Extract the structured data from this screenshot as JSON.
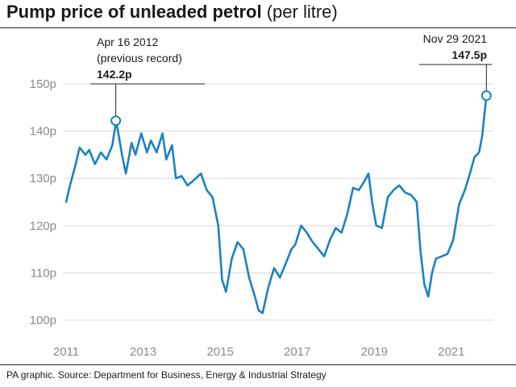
{
  "title_bold": "Pump price of unleaded petrol",
  "title_light": "(per litre)",
  "source": "PA graphic. Source: Department for Business, Energy & Industrial Strategy",
  "colors": {
    "line": "#1a82c3",
    "grid": "#d9d9d9",
    "axis_text": "#8a8a8a"
  },
  "chart_data": {
    "type": "line",
    "title": "Pump price of unleaded petrol (per litre)",
    "xlabel": "",
    "ylabel": "",
    "xlim": [
      2011.0,
      2022.05
    ],
    "ylim": [
      100,
      150
    ],
    "grid": "horizontal",
    "x_ticks": [
      2011,
      2013,
      2015,
      2017,
      2019,
      2021
    ],
    "x_tick_labels": [
      "2011",
      "2013",
      "2015",
      "2017",
      "2019",
      "2021"
    ],
    "y_ticks": [
      100,
      110,
      120,
      130,
      140,
      150
    ],
    "y_tick_labels": [
      "100p",
      "110p",
      "120p",
      "130p",
      "140p",
      "150p"
    ],
    "series": [
      {
        "values": [
          [
            2011.0,
            125.0
          ],
          [
            2011.1,
            128.5
          ],
          [
            2011.25,
            133.0
          ],
          [
            2011.35,
            136.5
          ],
          [
            2011.5,
            135.0
          ],
          [
            2011.6,
            136.0
          ],
          [
            2011.75,
            133.0
          ],
          [
            2011.9,
            135.5
          ],
          [
            2012.05,
            134.0
          ],
          [
            2012.2,
            137.0
          ],
          [
            2012.3,
            142.2
          ],
          [
            2012.45,
            135.0
          ],
          [
            2012.55,
            131.0
          ],
          [
            2012.7,
            137.5
          ],
          [
            2012.8,
            135.0
          ],
          [
            2012.95,
            139.5
          ],
          [
            2013.1,
            135.5
          ],
          [
            2013.2,
            138.0
          ],
          [
            2013.35,
            135.5
          ],
          [
            2013.5,
            139.5
          ],
          [
            2013.6,
            134.0
          ],
          [
            2013.75,
            137.0
          ],
          [
            2013.85,
            130.0
          ],
          [
            2014.0,
            130.5
          ],
          [
            2014.15,
            128.5
          ],
          [
            2014.3,
            129.5
          ],
          [
            2014.5,
            131.0
          ],
          [
            2014.65,
            127.5
          ],
          [
            2014.8,
            126.0
          ],
          [
            2014.95,
            120.0
          ],
          [
            2015.05,
            108.5
          ],
          [
            2015.15,
            106.0
          ],
          [
            2015.3,
            113.0
          ],
          [
            2015.45,
            116.5
          ],
          [
            2015.6,
            115.0
          ],
          [
            2015.75,
            109.0
          ],
          [
            2015.9,
            105.0
          ],
          [
            2016.0,
            102.0
          ],
          [
            2016.1,
            101.5
          ],
          [
            2016.25,
            107.0
          ],
          [
            2016.4,
            111.0
          ],
          [
            2016.55,
            109.0
          ],
          [
            2016.7,
            112.0
          ],
          [
            2016.85,
            115.0
          ],
          [
            2016.95,
            116.0
          ],
          [
            2017.1,
            120.0
          ],
          [
            2017.25,
            118.5
          ],
          [
            2017.4,
            116.5
          ],
          [
            2017.55,
            115.0
          ],
          [
            2017.7,
            113.5
          ],
          [
            2017.85,
            117.0
          ],
          [
            2018.0,
            119.5
          ],
          [
            2018.15,
            118.5
          ],
          [
            2018.3,
            122.5
          ],
          [
            2018.45,
            128.0
          ],
          [
            2018.6,
            127.5
          ],
          [
            2018.75,
            129.5
          ],
          [
            2018.85,
            131.0
          ],
          [
            2018.95,
            124.5
          ],
          [
            2019.05,
            120.0
          ],
          [
            2019.2,
            119.5
          ],
          [
            2019.35,
            126.0
          ],
          [
            2019.5,
            127.5
          ],
          [
            2019.65,
            128.5
          ],
          [
            2019.8,
            127.0
          ],
          [
            2019.95,
            126.5
          ],
          [
            2020.1,
            125.0
          ],
          [
            2020.2,
            114.5
          ],
          [
            2020.3,
            107.5
          ],
          [
            2020.4,
            105.0
          ],
          [
            2020.5,
            110.0
          ],
          [
            2020.6,
            113.0
          ],
          [
            2020.75,
            113.5
          ],
          [
            2020.9,
            114.0
          ],
          [
            2021.05,
            117.0
          ],
          [
            2021.2,
            124.5
          ],
          [
            2021.35,
            127.5
          ],
          [
            2021.5,
            131.5
          ],
          [
            2021.6,
            134.5
          ],
          [
            2021.72,
            135.5
          ],
          [
            2021.8,
            139.0
          ],
          [
            2021.91,
            147.5
          ]
        ]
      }
    ],
    "annotations": [
      {
        "date": "Apr 16 2012",
        "note": "(previous record)",
        "value_label": "142.2p",
        "x": 2012.29,
        "y": 142.2
      },
      {
        "date": "Nov 29 2021",
        "value_label": "147.5p",
        "x": 2021.91,
        "y": 147.5
      }
    ]
  }
}
